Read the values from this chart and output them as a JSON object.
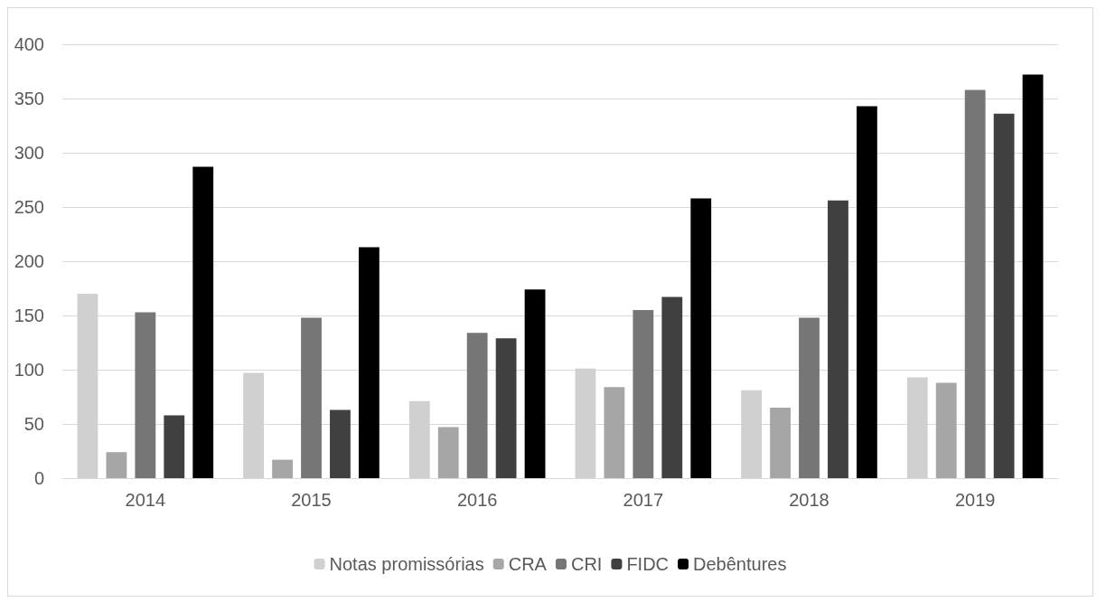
{
  "chart_data": {
    "type": "bar",
    "categories": [
      "2014",
      "2015",
      "2016",
      "2017",
      "2018",
      "2019"
    ],
    "series": [
      {
        "name": "Notas promissórias",
        "color": "#d0d0d0",
        "values": [
          170,
          97,
          71,
          101,
          81,
          93
        ]
      },
      {
        "name": "CRA",
        "color": "#a6a6a6",
        "values": [
          24,
          17,
          47,
          84,
          65,
          88
        ]
      },
      {
        "name": "CRI",
        "color": "#767676",
        "values": [
          153,
          148,
          134,
          155,
          148,
          358
        ]
      },
      {
        "name": "FIDC",
        "color": "#404040",
        "values": [
          58,
          63,
          129,
          167,
          256,
          336
        ]
      },
      {
        "name": "Debêntures",
        "color": "#000000",
        "values": [
          287,
          213,
          174,
          258,
          343,
          372
        ]
      }
    ],
    "ylim": [
      0,
      400
    ],
    "yticks": [
      0,
      50,
      100,
      150,
      200,
      250,
      300,
      350,
      400
    ],
    "grid": "y",
    "legend": "bottom"
  }
}
